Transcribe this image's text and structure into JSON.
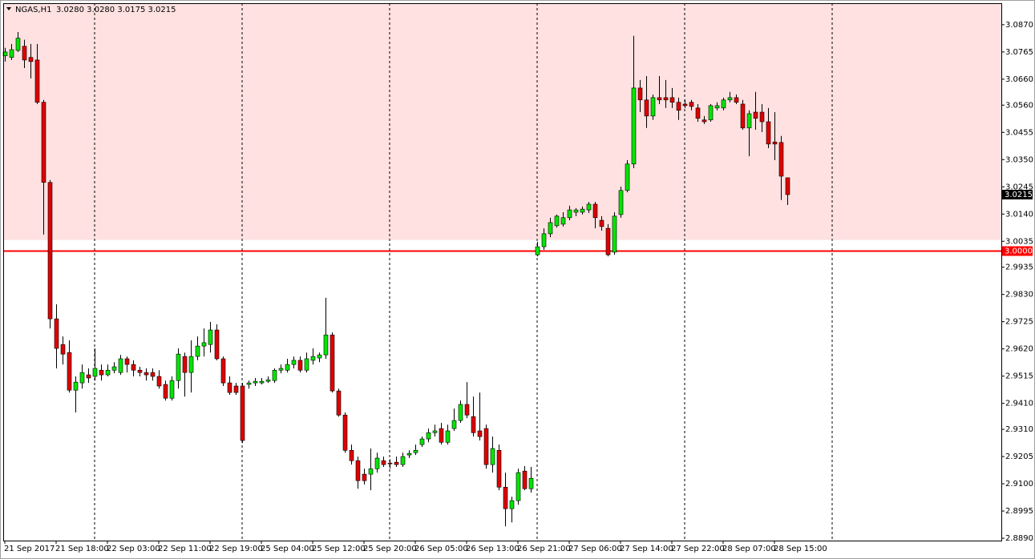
{
  "chart_data": {
    "type": "candlestick",
    "symbol": "NGAS,H1",
    "ohlc_label": "3.0280 3.0280 3.0175 3.0215",
    "last_price_label": "3.0215",
    "up_color": "#00e600",
    "down_color": "#e00000",
    "grid": false,
    "ylim": [
      2.8881,
      3.0953
    ],
    "yticks": [
      {
        "value": 3.087,
        "label": "3.0870"
      },
      {
        "value": 3.0765,
        "label": "3.0765"
      },
      {
        "value": 3.066,
        "label": "3.0660"
      },
      {
        "value": 3.056,
        "label": "3.0560"
      },
      {
        "value": 3.0455,
        "label": "3.0455"
      },
      {
        "value": 3.035,
        "label": "3.0350"
      },
      {
        "value": 3.0245,
        "label": "3.0245"
      },
      {
        "value": 3.014,
        "label": "3.0140"
      },
      {
        "value": 3.0035,
        "label": "3.0035"
      },
      {
        "value": 2.9935,
        "label": "2.9935"
      },
      {
        "value": 2.983,
        "label": "2.9830"
      },
      {
        "value": 2.9725,
        "label": "2.9725"
      },
      {
        "value": 2.962,
        "label": "2.9620"
      },
      {
        "value": 2.9515,
        "label": "2.9515"
      },
      {
        "value": 2.941,
        "label": "2.9410"
      },
      {
        "value": 2.931,
        "label": "2.9310"
      },
      {
        "value": 2.9205,
        "label": "2.9205"
      },
      {
        "value": 2.91,
        "label": "2.9100"
      },
      {
        "value": 2.8995,
        "label": "2.8995"
      },
      {
        "value": 2.889,
        "label": "2.8890"
      }
    ],
    "zone": {
      "low": 3.004,
      "color": "#ffe1e1"
    },
    "hline": {
      "value": 3.0,
      "label": "3.0000",
      "color": "#ff0000"
    },
    "categories": [
      "21 Sep 2017",
      null,
      null,
      null,
      null,
      null,
      null,
      null,
      "21 Sep 18:00",
      null,
      null,
      null,
      null,
      null,
      null,
      null,
      "22 Sep 03:00",
      null,
      null,
      null,
      null,
      null,
      null,
      null,
      "22 Sep 11:00",
      null,
      null,
      null,
      null,
      null,
      null,
      null,
      "22 Sep 19:00",
      null,
      null,
      null,
      null,
      null,
      null,
      null,
      "25 Sep 04:00",
      null,
      null,
      null,
      null,
      null,
      null,
      null,
      "25 Sep 12:00",
      null,
      null,
      null,
      null,
      null,
      null,
      null,
      "25 Sep 20:00",
      null,
      null,
      null,
      null,
      null,
      null,
      null,
      "26 Sep 05:00",
      null,
      null,
      null,
      null,
      null,
      null,
      null,
      "26 Sep 13:00",
      null,
      null,
      null,
      null,
      null,
      null,
      null,
      "26 Sep 21:00",
      null,
      null,
      null,
      null,
      null,
      null,
      null,
      "27 Sep 06:00",
      null,
      null,
      null,
      null,
      null,
      null,
      null,
      "27 Sep 14:00",
      null,
      null,
      null,
      null,
      null,
      null,
      null,
      "27 Sep 22:00",
      null,
      null,
      null,
      null,
      null,
      null,
      null,
      "28 Sep 07:00",
      null,
      null,
      null,
      null,
      null,
      null,
      null,
      "28 Sep 15:00",
      null,
      null
    ],
    "open": [
      3.075,
      3.0744,
      3.0771,
      3.0787,
      3.0744,
      3.0734,
      3.0571,
      3.0262,
      2.9736,
      2.9637,
      2.9606,
      2.9461,
      2.9489,
      2.952,
      2.9514,
      2.9538,
      2.952,
      2.9538,
      2.9529,
      2.9582,
      2.956,
      2.9538,
      2.9529,
      2.9529,
      2.9514,
      2.9483,
      2.943,
      2.9498,
      2.9591,
      2.9529,
      2.9591,
      2.9631,
      2.9637,
      2.9693,
      2.9582,
      2.9489,
      2.9477,
      2.9477,
      2.9483,
      2.9489,
      2.9489,
      2.9495,
      2.9498,
      2.9538,
      2.9538,
      2.956,
      2.9576,
      2.9538,
      2.9576,
      2.9585,
      2.9597,
      2.9674,
      2.9458,
      2.9365,
      2.9229,
      2.9189,
      2.9137,
      2.9137,
      2.9158,
      2.9189,
      2.918,
      2.9183,
      2.9174,
      2.9211,
      2.922,
      2.9251,
      2.9273,
      2.9297,
      2.9313,
      2.926,
      2.9313,
      2.9344,
      2.9406,
      2.9359,
      2.9304,
      2.9313,
      2.9174,
      2.9229,
      2.9087,
      2.9004,
      2.9035,
      2.9149,
      2.9081,
      2.9983,
      3.0014,
      3.0064,
      3.0095,
      3.0101,
      3.0126,
      3.0147,
      3.0147,
      3.0156,
      3.0178,
      3.0116,
      3.0085,
      2.9993,
      3.0138,
      3.0231,
      3.0333,
      3.0626,
      3.058,
      3.0518,
      3.0589,
      3.0589,
      3.0589,
      3.0571,
      3.0564,
      3.0571,
      3.0549,
      3.0503,
      3.0503,
      3.0549,
      3.0549,
      3.058,
      3.0589,
      3.0564,
      3.0472,
      3.0533,
      3.0533,
      3.0496,
      3.0418,
      3.0416,
      3.028
    ],
    "high": [
      3.0781,
      3.0796,
      3.0842,
      3.0812,
      3.0796,
      3.0796,
      3.058,
      3.0271,
      2.9792,
      2.9668,
      2.9653,
      2.9514,
      2.956,
      2.9545,
      2.9622,
      2.956,
      2.956,
      2.9569,
      2.9597,
      2.9591,
      2.9576,
      2.9551,
      2.9545,
      2.9545,
      2.9538,
      2.9498,
      2.9514,
      2.9622,
      2.9606,
      2.9653,
      2.9668,
      2.9699,
      2.9724,
      2.9715,
      2.9591,
      2.9514,
      2.9489,
      2.9489,
      2.9498,
      2.9508,
      2.9508,
      2.9514,
      2.9545,
      2.956,
      2.9582,
      2.9591,
      2.9591,
      2.9606,
      2.9622,
      2.9606,
      2.9817,
      2.9684,
      2.9467,
      2.9375,
      2.9251,
      2.9205,
      2.9158,
      2.9236,
      2.922,
      2.9205,
      2.9195,
      2.9205,
      2.922,
      2.9229,
      2.9251,
      2.9282,
      2.9313,
      2.9328,
      2.9335,
      2.9328,
      2.939,
      2.9421,
      2.9492,
      2.9436,
      2.9452,
      2.9328,
      2.9282,
      2.9251,
      2.9143,
      2.905,
      2.9158,
      2.9168,
      2.9165,
      3.0033,
      3.0085,
      3.0126,
      3.0138,
      3.0147,
      3.0172,
      3.0163,
      3.0169,
      3.0187,
      3.0187,
      3.0132,
      3.0101,
      3.0147,
      3.0246,
      3.0348,
      3.0827,
      3.0657,
      3.0672,
      3.0601,
      3.0672,
      3.0657,
      3.0626,
      3.0589,
      3.058,
      3.058,
      3.0564,
      3.0518,
      3.0564,
      3.0571,
      3.0589,
      3.0611,
      3.0601,
      3.058,
      3.054,
      3.0611,
      3.0564,
      3.0549,
      3.0533,
      3.0441,
      3.028
    ],
    "low": [
      3.0728,
      3.0734,
      3.0765,
      3.0703,
      3.0663,
      3.0564,
      3.0061,
      2.9699,
      2.9545,
      2.956,
      2.9452,
      2.9375,
      2.9467,
      2.9489,
      2.9498,
      2.9498,
      2.9514,
      2.9526,
      2.952,
      2.9529,
      2.9514,
      2.9514,
      2.9498,
      2.9498,
      2.9467,
      2.9421,
      2.9421,
      2.9467,
      2.9436,
      2.9452,
      2.9576,
      2.9591,
      2.9606,
      2.9576,
      2.9477,
      2.9443,
      2.9443,
      2.9257,
      2.9467,
      2.9477,
      2.9483,
      2.9489,
      2.9489,
      2.9526,
      2.9529,
      2.9545,
      2.9529,
      2.9529,
      2.956,
      2.9569,
      2.9582,
      2.9452,
      2.9359,
      2.922,
      2.9174,
      2.9081,
      2.9097,
      2.9075,
      2.9143,
      2.9165,
      2.9158,
      2.9165,
      2.9165,
      2.9199,
      2.9211,
      2.9242,
      2.926,
      2.9282,
      2.9251,
      2.9251,
      2.9304,
      2.9335,
      2.9353,
      2.9282,
      2.9267,
      2.9158,
      2.9143,
      2.9075,
      2.8936,
      2.8951,
      2.9019,
      2.9075,
      2.9066,
      2.9977,
      3.0002,
      3.0051,
      3.0088,
      3.0092,
      3.0116,
      3.0132,
      3.0138,
      3.0144,
      3.0085,
      3.0076,
      2.9977,
      2.9983,
      3.0126,
      3.0224,
      3.0317,
      3.0533,
      3.0472,
      3.0503,
      3.0564,
      3.0549,
      3.0549,
      3.0503,
      3.0549,
      3.054,
      3.0496,
      3.0487,
      3.0496,
      3.054,
      3.054,
      3.0571,
      3.0564,
      3.0465,
      3.0363,
      3.0465,
      3.0456,
      3.0394,
      3.0348,
      3.0194,
      3.0175
    ],
    "close": [
      3.0765,
      3.0774,
      3.0818,
      3.0734,
      3.0728,
      3.0571,
      3.0262,
      2.9736,
      2.9622,
      2.96,
      2.9461,
      2.9492,
      2.9529,
      2.9508,
      2.9545,
      2.952,
      2.9538,
      2.9551,
      2.9582,
      2.956,
      2.9538,
      2.9529,
      2.952,
      2.9514,
      2.9477,
      2.943,
      2.9498,
      2.96,
      2.9529,
      2.9591,
      2.9631,
      2.9644,
      2.9693,
      2.9582,
      2.9489,
      2.9452,
      2.9452,
      2.9267,
      2.9489,
      2.9495,
      2.9495,
      2.9501,
      2.9538,
      2.9545,
      2.956,
      2.9576,
      2.9538,
      2.9582,
      2.9591,
      2.9597,
      2.9674,
      2.9458,
      2.9365,
      2.9229,
      2.9189,
      2.9112,
      2.9112,
      2.9158,
      2.9199,
      2.9174,
      2.9177,
      2.9174,
      2.9205,
      2.9217,
      2.9229,
      2.9273,
      2.9297,
      2.9304,
      2.926,
      2.9304,
      2.9344,
      2.9406,
      2.9365,
      2.9297,
      2.9282,
      2.9174,
      2.9236,
      2.9087,
      2.9004,
      2.9035,
      2.9143,
      2.9081,
      2.9121,
      3.0014,
      3.0064,
      3.0107,
      3.0132,
      3.0126,
      3.0156,
      3.0156,
      3.0159,
      3.0178,
      3.0126,
      3.0092,
      2.9983,
      3.0132,
      3.0231,
      3.0333,
      3.0626,
      3.058,
      3.0518,
      3.0589,
      3.058,
      3.058,
      3.0571,
      3.054,
      3.0558,
      3.0555,
      3.0509,
      3.0496,
      3.0558,
      3.0558,
      3.058,
      3.0589,
      3.0571,
      3.0472,
      3.0527,
      3.0509,
      3.0496,
      3.041,
      3.041,
      3.0286,
      3.0215
    ]
  }
}
